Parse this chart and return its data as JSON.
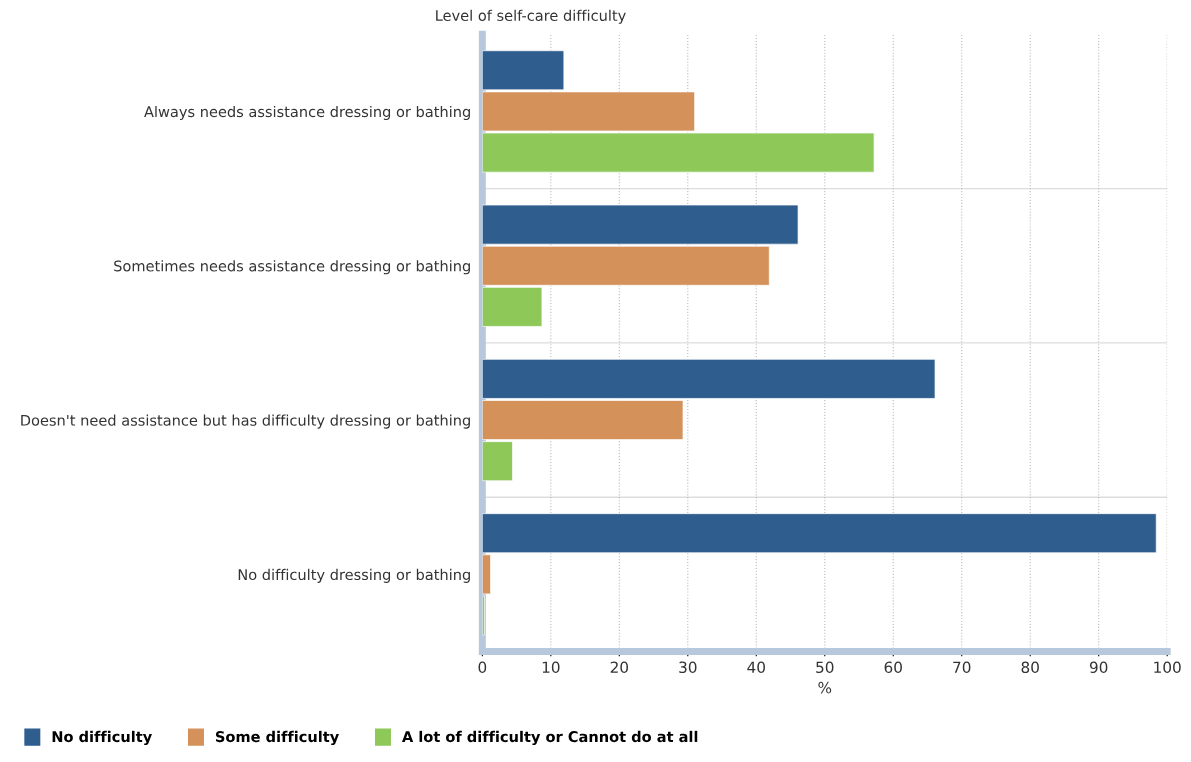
{
  "chart_data": {
    "type": "bar",
    "orientation": "horizontal",
    "ylabel": "Level of self-care difficulty",
    "xlabel": "%",
    "categories": [
      "Always needs assistance dressing or bathing",
      "Sometimes needs assistance dressing or bathing",
      "Doesn't need assistance but has difficulty dressing or bathing",
      "No difficulty dressing or bathing"
    ],
    "series": [
      {
        "name": "No difficulty",
        "color": "#2e5d8e",
        "values": [
          11.9,
          46.1,
          66.1,
          98.4
        ]
      },
      {
        "name": "Some difficulty",
        "color": "#d4915a",
        "values": [
          31.0,
          41.9,
          29.3,
          1.2
        ]
      },
      {
        "name": "A lot of difficulty or Cannot do at all",
        "color": "#8dc859",
        "values": [
          57.2,
          8.7,
          4.4,
          0.3
        ]
      }
    ],
    "xlim": [
      0,
      100
    ],
    "xticks": [
      0,
      10,
      20,
      30,
      40,
      50,
      60,
      70,
      80,
      90,
      100
    ],
    "grid": "x",
    "legend": "bottom"
  }
}
